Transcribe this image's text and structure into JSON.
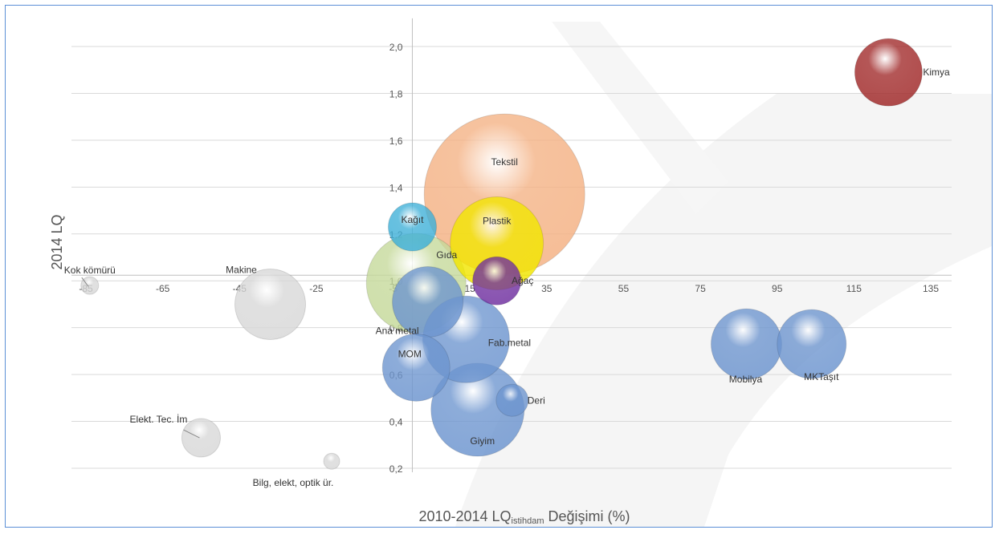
{
  "chart_data": {
    "type": "bubble",
    "xlabel": "2010-2014 LQ",
    "xlabel_sub": "istihdam",
    "xlabel_suffix": " Değişimi (%)",
    "ylabel": "2014 LQ",
    "xlim": [
      -85,
      140
    ],
    "ylim": [
      0.2,
      2.0
    ],
    "x_ticks": [
      "-85",
      "-65",
      "-45",
      "-25",
      "-5",
      "15",
      "35",
      "55",
      "75",
      "95",
      "115",
      "135"
    ],
    "x_tick_values": [
      -85,
      -65,
      -45,
      -25,
      -5,
      15,
      35,
      55,
      75,
      95,
      115,
      135
    ],
    "y_ticks": [
      "0,2",
      "0,4",
      "0,6",
      "0,8",
      "1,0",
      "1,2",
      "1,4",
      "1,6",
      "1,8",
      "2,0"
    ],
    "y_tick_values": [
      0.2,
      0.4,
      0.6,
      0.8,
      1.0,
      1.2,
      1.4,
      1.6,
      1.8,
      2.0
    ],
    "grid": true,
    "bubbles": [
      {
        "name": "Tekstil",
        "x": 24,
        "y": 1.37,
        "size": 100,
        "color": "#f4b183"
      },
      {
        "name": "Gıda",
        "x": 1,
        "y": 0.99,
        "size": 62,
        "color": "#c5d99a"
      },
      {
        "name": "Plastik",
        "x": 22,
        "y": 1.16,
        "size": 58,
        "color": "#f2e600"
      },
      {
        "name": "Ağaç",
        "x": 22,
        "y": 1.0,
        "size": 30,
        "color": "#7030a0"
      },
      {
        "name": "Kağıt",
        "x": 0,
        "y": 1.23,
        "size": 30,
        "color": "#3fb0d8"
      },
      {
        "name": "Ana metal",
        "x": 4,
        "y": 0.91,
        "size": 44,
        "color": "#6d95cf"
      },
      {
        "name": "Fab.metal",
        "x": 14,
        "y": 0.75,
        "size": 54,
        "color": "#6d95cf"
      },
      {
        "name": "MOM",
        "x": 1,
        "y": 0.63,
        "size": 42,
        "color": "#6d95cf"
      },
      {
        "name": "Giyim",
        "x": 17,
        "y": 0.45,
        "size": 58,
        "color": "#6d95cf"
      },
      {
        "name": "Deri",
        "x": 26,
        "y": 0.49,
        "size": 20,
        "color": "#6d95cf"
      },
      {
        "name": "Mobilya",
        "x": 87,
        "y": 0.73,
        "size": 44,
        "color": "#6d95cf"
      },
      {
        "name": "MKTaşıt",
        "x": 104,
        "y": 0.73,
        "size": 43,
        "color": "#6d95cf"
      },
      {
        "name": "Kimya",
        "x": 124,
        "y": 1.89,
        "size": 42,
        "color": "#a02828"
      },
      {
        "name": "Makine",
        "x": -37,
        "y": 0.9,
        "size": 44,
        "color": "#d8d8d8"
      },
      {
        "name": "Kok kömürü",
        "x": -84,
        "y": 0.98,
        "size": 11,
        "color": "#d8d8d8"
      },
      {
        "name": "Elekt. Tec. İm",
        "x": -55,
        "y": 0.33,
        "size": 24,
        "color": "#d8d8d8"
      },
      {
        "name": "Bilg, elekt, optik ür.",
        "x": -21,
        "y": 0.23,
        "size": 10,
        "color": "#d8d8d8"
      }
    ]
  }
}
